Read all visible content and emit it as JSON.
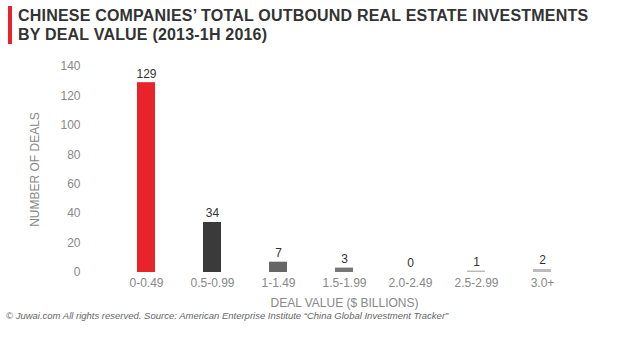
{
  "chart_data": {
    "type": "bar",
    "title": "CHINESE COMPANIES’ TOTAL OUTBOUND REAL ESTATE INVESTMENTS BY DEAL VALUE (2013-1H 2016)",
    "x_label": "DEAL VALUE ($ BILLIONS)",
    "y_label": "NUMBER OF DEALS",
    "caption": "© Juwai.com All rights reserved. Source: American Enterprise Institute “China Global Investment Tracker”",
    "categories": [
      "0-0.49",
      "0.5-0.99",
      "1-1.49",
      "1.5-1.99",
      "2.0-2.49",
      "2.5-2.99",
      "3.0+"
    ],
    "values": [
      129,
      34,
      7,
      3,
      0,
      1,
      2
    ],
    "colors": [
      "#e8232a",
      "#3a3a3a",
      "#666666",
      "#777777",
      "#999999",
      "#bbbbbb",
      "#bbbbbb"
    ],
    "ylim": [
      0,
      140
    ],
    "yticks": [
      0,
      20,
      40,
      60,
      80,
      100,
      120,
      140
    ],
    "grid": false,
    "data_labels": true
  }
}
